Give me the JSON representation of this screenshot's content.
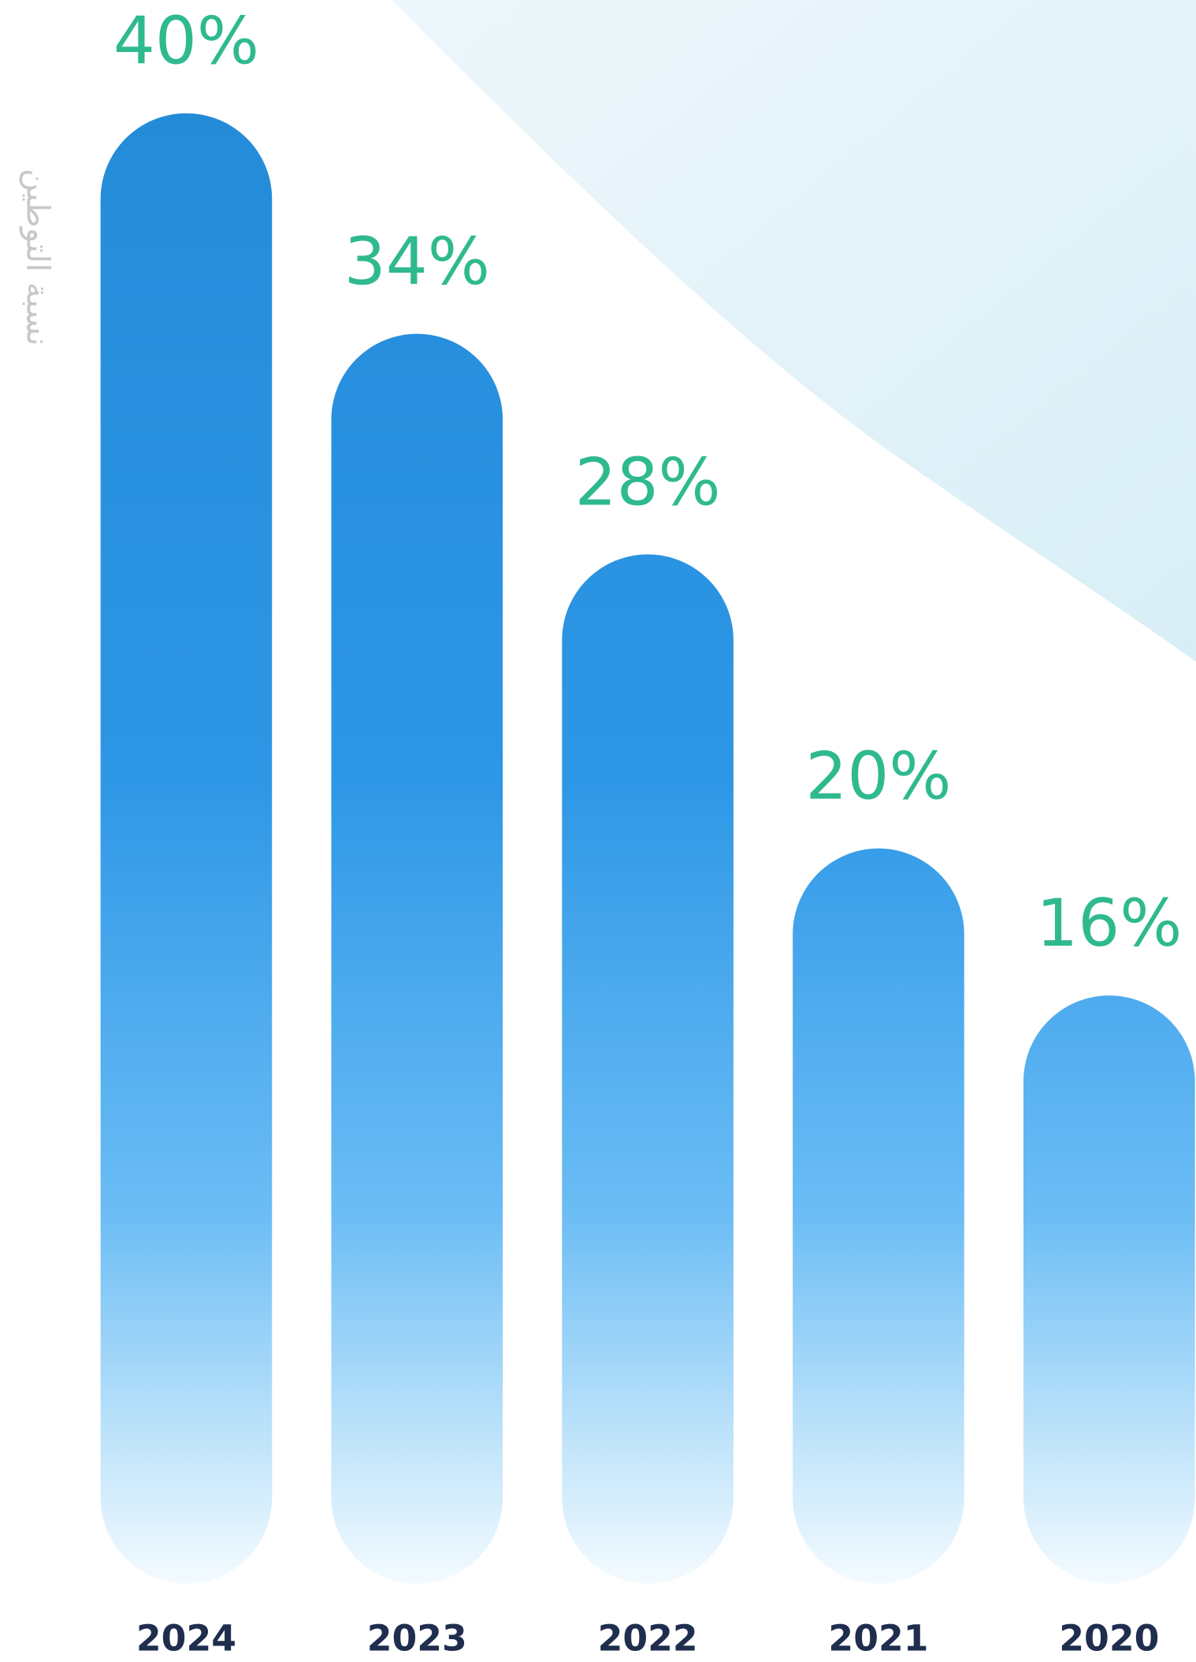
{
  "chart_data": {
    "type": "bar",
    "y_label": "نسبة التوطين",
    "categories": [
      "2024",
      "2023",
      "2022",
      "2021",
      "2020"
    ],
    "values": [
      40,
      34,
      28,
      20,
      16
    ],
    "value_labels": [
      "40%",
      "34%",
      "28%",
      "20%",
      "16%"
    ],
    "ylim": [
      0,
      40
    ]
  }
}
